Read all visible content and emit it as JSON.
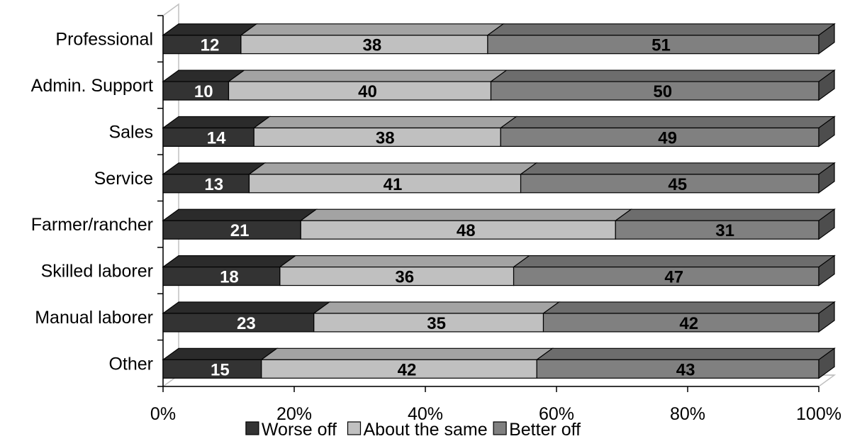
{
  "chart_data": {
    "type": "bar",
    "orientation": "horizontal",
    "stacked": "percent",
    "three_d": true,
    "categories": [
      "Professional",
      "Admin. Support",
      "Sales",
      "Service",
      "Farmer/rancher",
      "Skilled laborer",
      "Manual laborer",
      "Other"
    ],
    "series": [
      {
        "name": "Worse off",
        "values": [
          12,
          10,
          14,
          13,
          21,
          18,
          23,
          15
        ],
        "color": "#333333",
        "label_color": "#ffffff"
      },
      {
        "name": "About the same",
        "values": [
          38,
          40,
          38,
          41,
          48,
          36,
          35,
          42
        ],
        "color": "#c0c0c0",
        "label_color": "#000000"
      },
      {
        "name": "Better off",
        "values": [
          51,
          50,
          49,
          45,
          31,
          47,
          42,
          43
        ],
        "color": "#808080",
        "label_color": "#000000"
      }
    ],
    "x_ticks": [
      "0%",
      "20%",
      "40%",
      "60%",
      "80%",
      "100%"
    ],
    "xlim": [
      0,
      100
    ],
    "legend_position": "bottom",
    "title": "",
    "xlabel": "",
    "ylabel": ""
  }
}
